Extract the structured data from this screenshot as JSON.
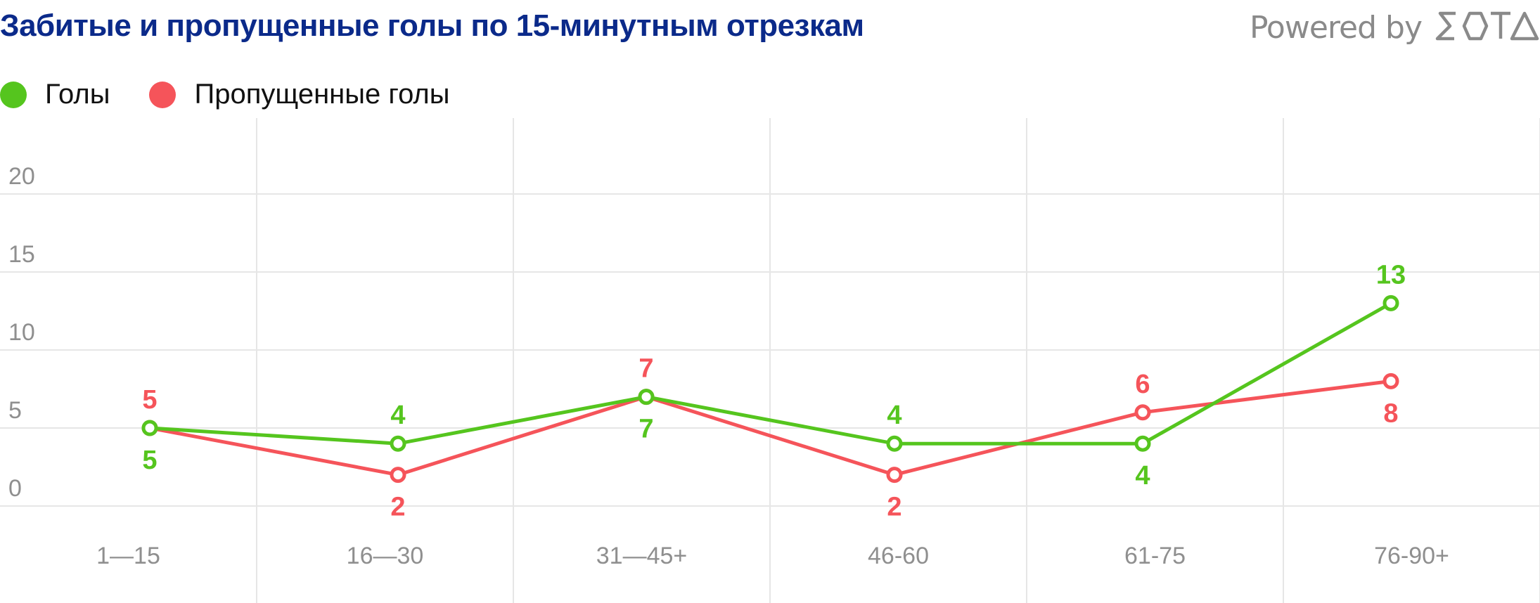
{
  "header": {
    "title": "Забитые и пропущенные голы по 15-минутным отрезкам",
    "brand_prefix": "Powered by",
    "brand_logo_text": "SOTA"
  },
  "colors": {
    "title": "#0b2a8a",
    "goals": "#55c51e",
    "conceded": "#f5545a",
    "grid": "#e6e6e6",
    "axis_text": "#8f8f8f",
    "brand": "#8a8a8a"
  },
  "chart_data": {
    "type": "line",
    "categories": [
      "1—15",
      "16—30",
      "31—45+",
      "46-60",
      "61-75",
      "76-90+"
    ],
    "yticks": [
      0,
      5,
      10,
      15,
      20
    ],
    "ylim": [
      0,
      20
    ],
    "grid": true,
    "legend_position": "top-left",
    "series": [
      {
        "name": "Голы",
        "color": "#55c51e",
        "values": [
          5,
          4,
          7,
          4,
          4,
          13
        ]
      },
      {
        "name": "Пропущенные голы",
        "color": "#f5545a",
        "values": [
          5,
          2,
          7,
          2,
          6,
          8
        ]
      }
    ]
  }
}
